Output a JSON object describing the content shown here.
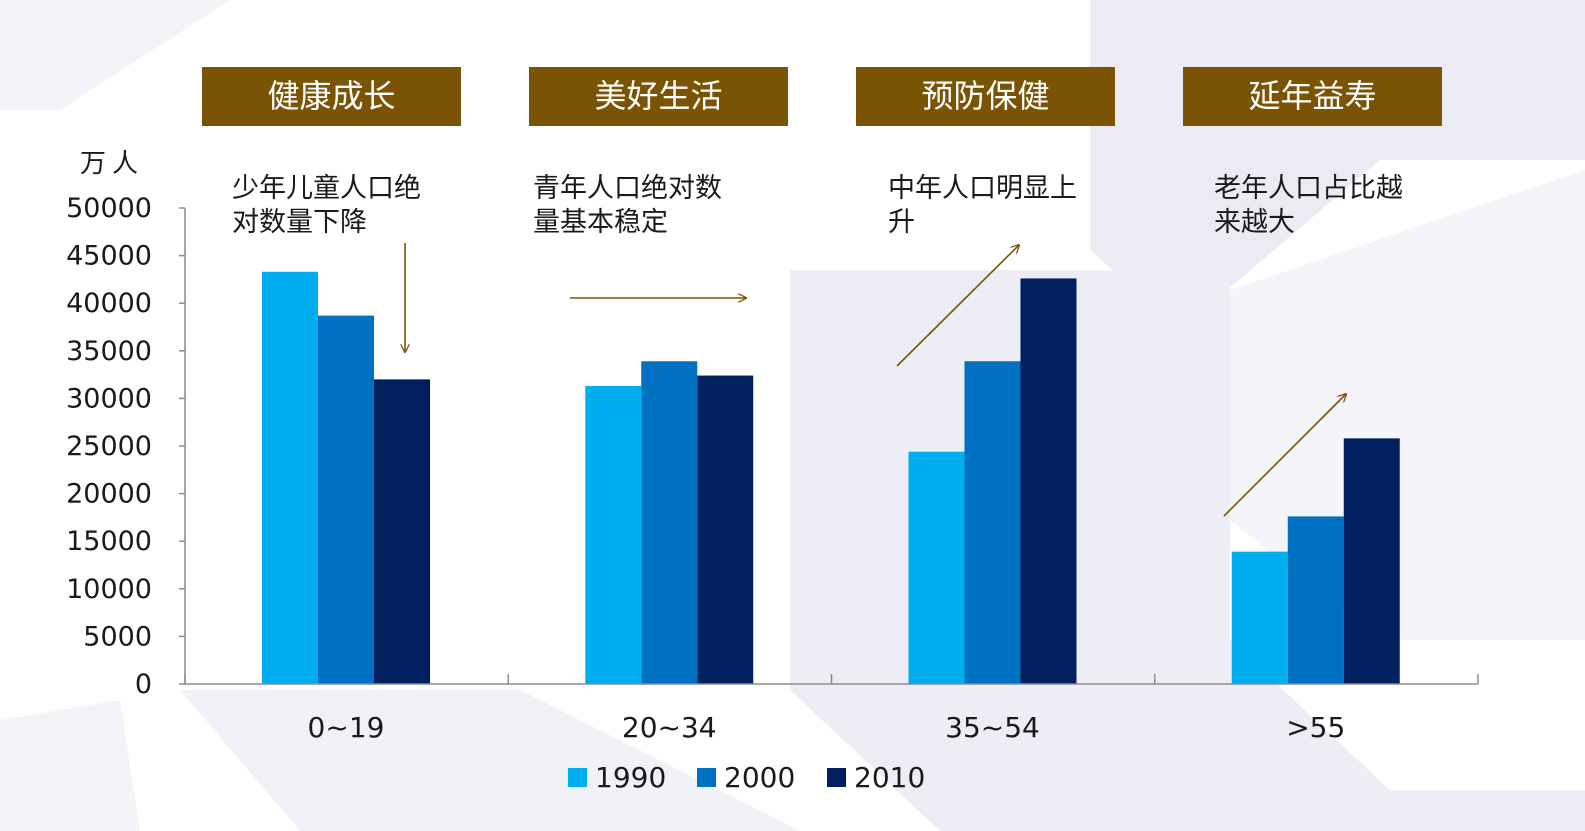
{
  "banners": [
    "健康成长",
    "美好生活",
    "预防保健",
    "延年益寿"
  ],
  "annotations": [
    [
      "少年儿童人口绝",
      "对数量下降"
    ],
    [
      "青年人口绝对数",
      "量基本稳定"
    ],
    [
      "中年人口明显上",
      "升"
    ],
    [
      "老年人口占比越",
      "来越大"
    ]
  ],
  "colors": {
    "banner_bg": "#7a5304",
    "arrow": "#7a5304",
    "series": [
      "#00aeef",
      "#0070c0",
      "#002060"
    ]
  },
  "chart_data": {
    "type": "bar",
    "title": "",
    "ylabel": "万人",
    "xlabel": "",
    "categories": [
      "0~19",
      "20~34",
      "35~54",
      ">55"
    ],
    "series": [
      {
        "name": "1990",
        "values": [
          43300,
          31300,
          24400,
          13900
        ]
      },
      {
        "name": "2000",
        "values": [
          38700,
          33900,
          33900,
          17600
        ]
      },
      {
        "name": "2010",
        "values": [
          32000,
          32400,
          42600,
          25800
        ]
      }
    ],
    "ylim": [
      0,
      50000
    ],
    "yticks": [
      0,
      5000,
      10000,
      15000,
      20000,
      25000,
      30000,
      35000,
      40000,
      45000,
      50000
    ],
    "legend_position": "bottom",
    "grid": false
  }
}
